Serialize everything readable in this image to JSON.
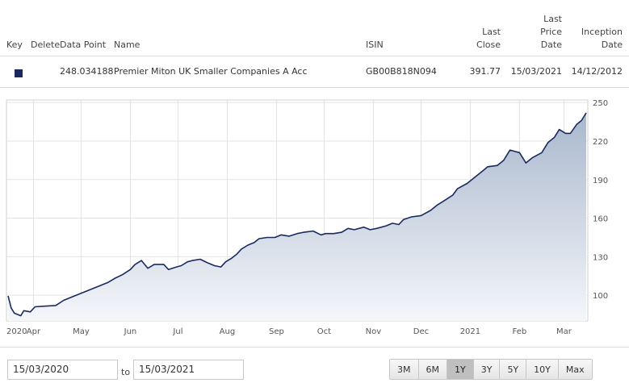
{
  "table": {
    "headers": {
      "key": "Key",
      "delete": "Delete",
      "data_point": "Data Point",
      "name": "Name",
      "isin": "ISIN",
      "last_close_l1": "Last",
      "last_close_l2": "Close",
      "last_price_date_l1": "Last",
      "last_price_date_l2": "Price",
      "last_price_date_l3": "Date",
      "inception_date_l1": "Inception",
      "inception_date_l2": "Date"
    },
    "row": {
      "key_color": "#1a2a5e",
      "data_point": "248.034188",
      "name": "Premier Miton UK Smaller Companies A Acc",
      "isin": "GB00B818N094",
      "last_close": "391.77",
      "last_price_date": "15/03/2021",
      "inception_date": "14/12/2012"
    }
  },
  "chart_data": {
    "type": "area",
    "series": [
      {
        "name": "Premier Miton UK Smaller Companies A Acc",
        "color": "#1a2a5e",
        "fill_top": "#a9b8cd",
        "fill_bottom": "#f4f6fa",
        "points": [
          [
            "2020-03-16",
            99.5
          ],
          [
            "2020-03-18",
            90
          ],
          [
            "2020-03-20",
            86
          ],
          [
            "2020-03-24",
            84
          ],
          [
            "2020-03-26",
            88
          ],
          [
            "2020-03-30",
            87
          ],
          [
            "2020-04-02",
            91
          ],
          [
            "2020-04-08",
            91.5
          ],
          [
            "2020-04-15",
            92
          ],
          [
            "2020-04-20",
            96
          ],
          [
            "2020-04-24",
            98
          ],
          [
            "2020-04-30",
            101
          ],
          [
            "2020-05-06",
            104
          ],
          [
            "2020-05-12",
            107
          ],
          [
            "2020-05-18",
            110
          ],
          [
            "2020-05-22",
            113
          ],
          [
            "2020-05-27",
            116
          ],
          [
            "2020-06-01",
            120
          ],
          [
            "2020-06-04",
            124
          ],
          [
            "2020-06-08",
            127
          ],
          [
            "2020-06-12",
            121
          ],
          [
            "2020-06-16",
            124
          ],
          [
            "2020-06-22",
            124
          ],
          [
            "2020-06-25",
            120
          ],
          [
            "2020-06-30",
            122
          ],
          [
            "2020-07-03",
            123
          ],
          [
            "2020-07-07",
            126
          ],
          [
            "2020-07-10",
            127
          ],
          [
            "2020-07-15",
            128
          ],
          [
            "2020-07-20",
            125
          ],
          [
            "2020-07-24",
            123
          ],
          [
            "2020-07-28",
            122
          ],
          [
            "2020-07-31",
            126
          ],
          [
            "2020-08-04",
            129
          ],
          [
            "2020-08-07",
            132
          ],
          [
            "2020-08-10",
            136
          ],
          [
            "2020-08-14",
            139
          ],
          [
            "2020-08-18",
            141
          ],
          [
            "2020-08-21",
            144
          ],
          [
            "2020-08-26",
            145
          ],
          [
            "2020-08-31",
            145
          ],
          [
            "2020-09-04",
            147
          ],
          [
            "2020-09-09",
            146
          ],
          [
            "2020-09-14",
            148
          ],
          [
            "2020-09-18",
            149
          ],
          [
            "2020-09-24",
            150
          ],
          [
            "2020-09-29",
            147
          ],
          [
            "2020-10-02",
            148
          ],
          [
            "2020-10-07",
            148
          ],
          [
            "2020-10-12",
            149
          ],
          [
            "2020-10-16",
            152
          ],
          [
            "2020-10-20",
            151
          ],
          [
            "2020-10-26",
            153
          ],
          [
            "2020-10-30",
            151
          ],
          [
            "2020-11-03",
            152
          ],
          [
            "2020-11-09",
            154
          ],
          [
            "2020-11-13",
            156
          ],
          [
            "2020-11-17",
            155
          ],
          [
            "2020-11-20",
            159
          ],
          [
            "2020-11-25",
            161
          ],
          [
            "2020-12-01",
            162
          ],
          [
            "2020-12-07",
            166
          ],
          [
            "2020-12-11",
            170
          ],
          [
            "2020-12-16",
            174
          ],
          [
            "2020-12-21",
            178
          ],
          [
            "2020-12-24",
            183
          ],
          [
            "2020-12-30",
            187
          ],
          [
            "2021-01-04",
            192
          ],
          [
            "2021-01-08",
            196
          ],
          [
            "2021-01-12",
            200
          ],
          [
            "2021-01-18",
            201
          ],
          [
            "2021-01-22",
            205
          ],
          [
            "2021-01-26",
            213
          ],
          [
            "2021-02-01",
            211
          ],
          [
            "2021-02-05",
            203
          ],
          [
            "2021-02-09",
            207
          ],
          [
            "2021-02-15",
            211
          ],
          [
            "2021-02-19",
            219
          ],
          [
            "2021-02-23",
            223
          ],
          [
            "2021-02-26",
            229
          ],
          [
            "2021-03-02",
            226
          ],
          [
            "2021-03-05",
            226
          ],
          [
            "2021-03-09",
            233
          ],
          [
            "2021-03-12",
            236
          ],
          [
            "2021-03-15",
            242
          ]
        ]
      }
    ],
    "y_axis": {
      "min": 80,
      "max": 252,
      "ticks": [
        100,
        130,
        160,
        190,
        220,
        250
      ],
      "position": "right"
    },
    "x_axis": {
      "start": "2020-03-15",
      "end": "2021-03-16",
      "ticks": [
        {
          "label": "2020",
          "date": "2020-03-15"
        },
        {
          "label": "Apr",
          "date": "2020-04-01"
        },
        {
          "label": "May",
          "date": "2020-05-01"
        },
        {
          "label": "Jun",
          "date": "2020-06-01"
        },
        {
          "label": "Jul",
          "date": "2020-07-01"
        },
        {
          "label": "Aug",
          "date": "2020-08-01"
        },
        {
          "label": "Sep",
          "date": "2020-09-01"
        },
        {
          "label": "Oct",
          "date": "2020-10-01"
        },
        {
          "label": "Nov",
          "date": "2020-11-01"
        },
        {
          "label": "Dec",
          "date": "2020-12-01"
        },
        {
          "label": "2021",
          "date": "2021-01-01"
        },
        {
          "label": "Feb",
          "date": "2021-02-01"
        },
        {
          "label": "Mar",
          "date": "2021-03-01"
        }
      ]
    },
    "grid": true
  },
  "controls": {
    "from_date": "15/03/2020",
    "to_label": "to",
    "to_date": "15/03/2021",
    "ranges": [
      "3M",
      "6M",
      "1Y",
      "3Y",
      "5Y",
      "10Y",
      "Max"
    ],
    "active_range": "1Y"
  }
}
